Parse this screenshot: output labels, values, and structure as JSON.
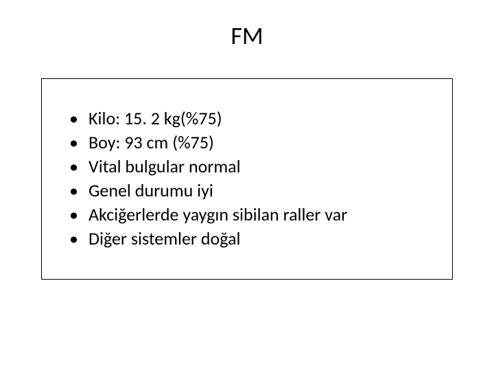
{
  "slide": {
    "title": "FM",
    "bullets": [
      "Kilo: 15. 2 kg(%75)",
      "Boy: 93 cm (%75)",
      "Vital bulgular normal",
      "Genel durumu iyi",
      "Akciğerlerde yaygın sibilan raller var",
      "Diğer sistemler doğal"
    ],
    "styling": {
      "background_color": "#ffffff",
      "title_fontsize": 36,
      "title_color": "#000000",
      "bullet_fontsize": 26,
      "bullet_color": "#000000",
      "box_border_color": "#000000",
      "box_border_width": 1,
      "font_family": "Calibri"
    }
  }
}
